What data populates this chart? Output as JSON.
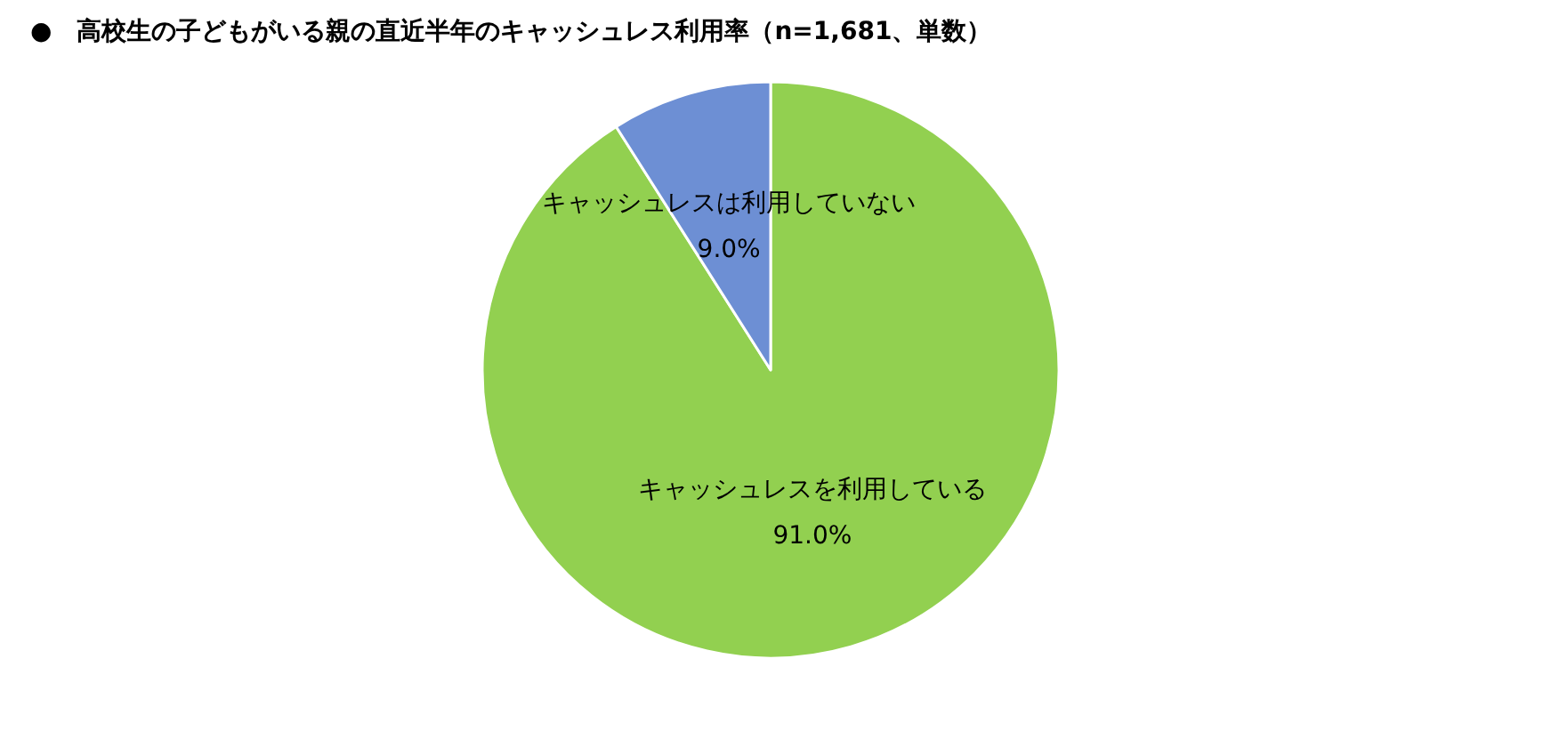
{
  "chart_data": {
    "type": "pie",
    "title": "●　高校生の子どもがいる親の直近半年のキャッシュレス利用率（n=1,681、単数）",
    "categories": [
      "キャッシュレスを利用している",
      "キャッシュレスは利用していない"
    ],
    "values": [
      91.0,
      9.0
    ],
    "colors": [
      "#92d050",
      "#6d8fd4"
    ],
    "value_labels": [
      "91.0%",
      "9.0%"
    ],
    "legend": false
  }
}
